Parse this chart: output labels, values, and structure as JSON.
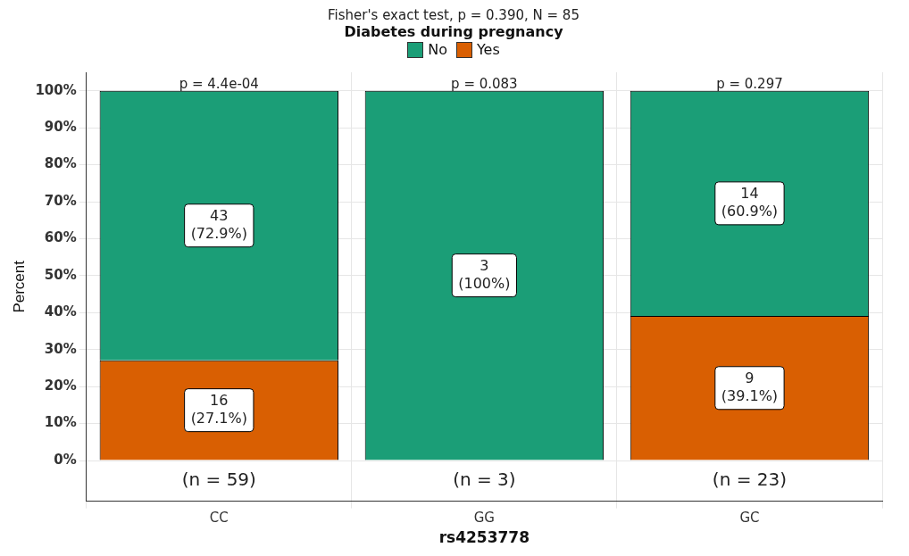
{
  "chart_data": {
    "type": "bar",
    "title": "Fisher's exact test, p = 0.390, N = 85",
    "legend_title": "Diabetes during pregnancy",
    "xlabel": "rs4253778",
    "ylabel": "Percent",
    "categories": [
      "CC",
      "GG",
      "GC"
    ],
    "stacked": true,
    "legend": "top",
    "grid": true,
    "series": [
      {
        "name": "Yes",
        "color": "#d95f02",
        "values": [
          27.1,
          0,
          39.1
        ],
        "value_labels": [
          "16\n(27.1%)",
          null,
          "9\n(39.1%)"
        ]
      },
      {
        "name": "No",
        "color": "#1b9e77",
        "values": [
          72.9,
          100,
          60.9
        ],
        "value_labels": [
          "43\n(72.9%)",
          "3\n(100%)",
          "14\n(60.9%)"
        ]
      }
    ],
    "ylim": [
      -11,
      105
    ],
    "yticks": [
      {
        "value": 0,
        "label": "0%"
      },
      {
        "value": 10,
        "label": "10%"
      },
      {
        "value": 20,
        "label": "20%"
      },
      {
        "value": 30,
        "label": "30%"
      },
      {
        "value": 40,
        "label": "40%"
      },
      {
        "value": 50,
        "label": "50%"
      },
      {
        "value": 60,
        "label": "60%"
      },
      {
        "value": 70,
        "label": "70%"
      },
      {
        "value": 80,
        "label": "80%"
      },
      {
        "value": 90,
        "label": "90%"
      },
      {
        "value": 100,
        "label": "100%"
      }
    ],
    "annotations": [
      "p = 4.4e-04",
      "p = 0.083",
      "p = 0.297",
      "(n = 59)",
      "(n = 3)",
      "(n = 23)"
    ]
  }
}
